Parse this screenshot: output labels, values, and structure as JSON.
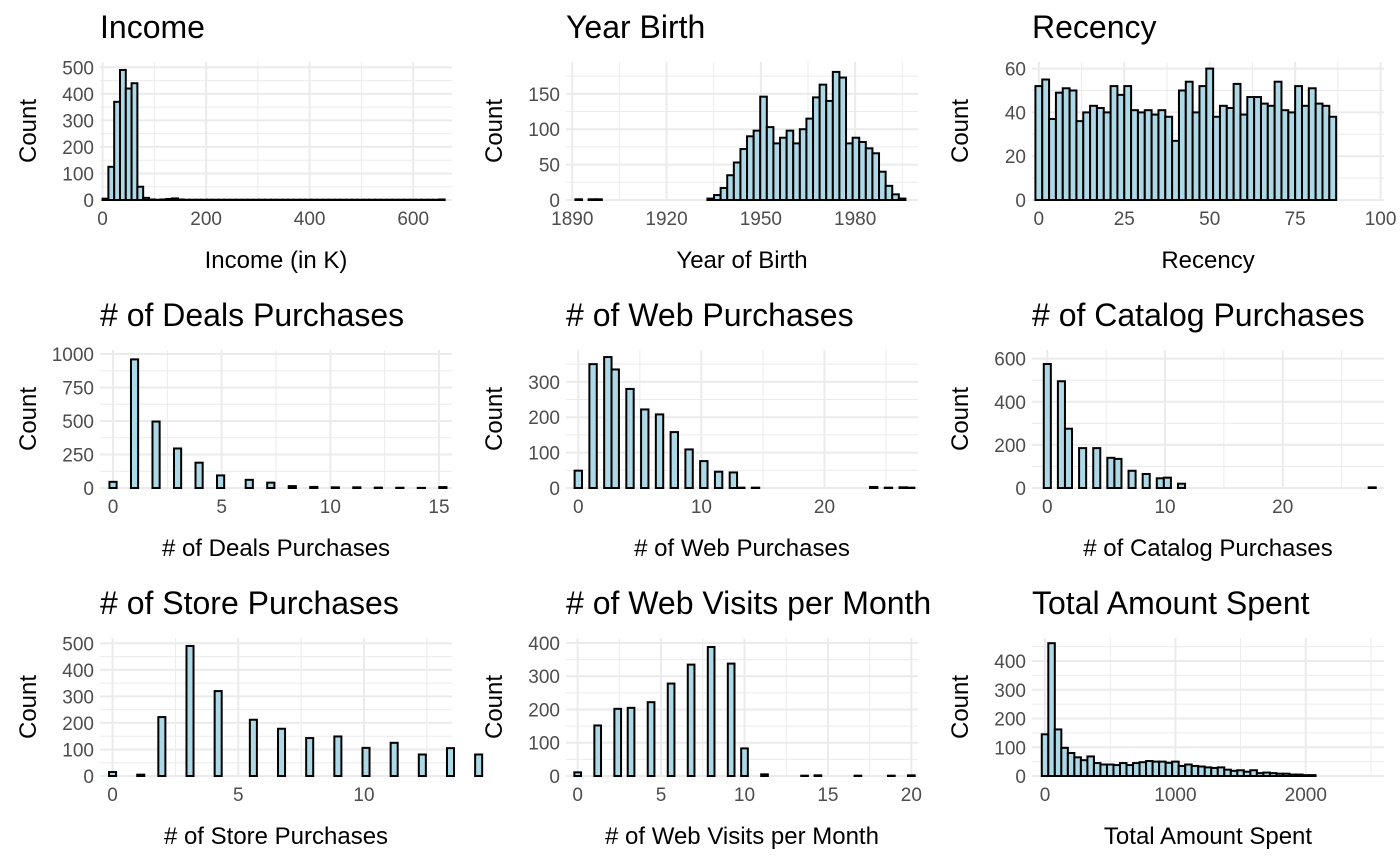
{
  "colors": {
    "bar_fill": "#add8e6",
    "bar_outline": "#000000",
    "grid": "#ebebeb",
    "tick_text": "#4d4d4d"
  },
  "chart_data": [
    {
      "type": "bar",
      "title": "Income",
      "xlabel": "Income (in K)",
      "ylabel": "Count",
      "xlim": [
        -5,
        675
      ],
      "ylim": [
        0,
        520
      ],
      "xticks": [
        0,
        200,
        400,
        600
      ],
      "yticks": [
        0,
        100,
        200,
        300,
        400,
        500
      ],
      "bin_width": 11.2,
      "x_start": 0,
      "values": [
        5,
        125,
        370,
        490,
        420,
        440,
        50,
        8,
        2,
        1,
        2,
        4,
        6,
        2,
        1,
        1,
        1,
        1,
        1,
        1,
        1,
        1,
        1,
        1,
        1,
        1,
        1,
        1,
        1,
        1,
        1,
        1,
        1,
        1,
        1,
        1,
        1,
        1,
        1,
        1,
        1,
        1,
        1,
        1,
        1,
        1,
        1,
        1,
        1,
        1,
        1,
        1,
        1,
        1,
        1,
        1,
        1,
        1,
        2
      ]
    },
    {
      "type": "bar",
      "title": "Year Birth",
      "xlabel": "Year of Birth",
      "ylabel": "Count",
      "xlim": [
        1888,
        2000
      ],
      "ylim": [
        0,
        195
      ],
      "xticks": [
        1890,
        1920,
        1950,
        1980
      ],
      "yticks": [
        0,
        50,
        100,
        150
      ],
      "bin_width": 2.1,
      "x_start": 1891,
      "values": [
        1,
        0,
        1,
        1,
        0,
        0,
        0,
        0,
        0,
        0,
        0,
        0,
        0,
        0,
        0,
        0,
        0,
        0,
        0,
        0,
        2,
        7,
        17,
        35,
        53,
        72,
        90,
        98,
        146,
        103,
        80,
        88,
        98,
        80,
        100,
        115,
        145,
        163,
        140,
        181,
        173,
        80,
        88,
        82,
        73,
        66,
        40,
        20,
        8,
        2
      ]
    },
    {
      "type": "bar",
      "title": "Recency",
      "xlabel": "Recency",
      "ylabel": "Count",
      "xlim": [
        -2,
        101
      ],
      "ylim": [
        0,
        63
      ],
      "xticks": [
        0,
        25,
        50,
        75,
        100
      ],
      "yticks": [
        0,
        20,
        40,
        60
      ],
      "bin_width": 2.0,
      "x_start": -1,
      "values": [
        52,
        55,
        37,
        49,
        51,
        50,
        36,
        40,
        43,
        42,
        40,
        52,
        48,
        52,
        41,
        40,
        41,
        39,
        41,
        38,
        27,
        50,
        54,
        40,
        52,
        60,
        38,
        43,
        42,
        53,
        39,
        47,
        47,
        44,
        43,
        54,
        41,
        40,
        52,
        43,
        51,
        44,
        43,
        38
      ]
    },
    {
      "type": "bar",
      "title": "# of Deals Purchases",
      "xlabel": "# of Deals Purchases",
      "ylabel": "Count",
      "xlim": [
        -0.6,
        15.6
      ],
      "ylim": [
        0,
        1030
      ],
      "xticks": [
        0,
        5,
        10,
        15
      ],
      "yticks": [
        0,
        250,
        500,
        750,
        1000
      ],
      "bin_width": 0.33,
      "x_start": -0.165,
      "values": [
        46,
        0,
        0,
        960,
        0,
        0,
        496,
        0,
        0,
        295,
        0,
        0,
        189,
        0,
        0,
        94,
        0,
        0,
        0,
        61,
        0,
        0,
        40,
        0,
        0,
        14,
        0,
        0,
        8,
        0,
        0,
        5,
        0,
        0,
        5,
        0,
        0,
        3,
        0,
        0,
        2,
        0,
        0,
        1,
        0,
        0,
        7
      ]
    },
    {
      "type": "bar",
      "title": "# of Web Purchases",
      "xlabel": "# of Web Purchases",
      "ylabel": "Count",
      "xlim": [
        -1,
        27.6
      ],
      "ylim": [
        0,
        390
      ],
      "xticks": [
        0,
        10,
        20
      ],
      "yticks": [
        0,
        100,
        200,
        300
      ],
      "bin_width": 0.6,
      "x_start": -0.3,
      "values": [
        49,
        0,
        350,
        0,
        370,
        335,
        0,
        280,
        0,
        222,
        0,
        208,
        0,
        158,
        0,
        109,
        0,
        76,
        0,
        46,
        0,
        44,
        1,
        0,
        1,
        0,
        0,
        0,
        0,
        0,
        0,
        0,
        0,
        0,
        0,
        0,
        0,
        0,
        0,
        0,
        3,
        0,
        1,
        0,
        2,
        1
      ]
    },
    {
      "type": "bar",
      "title": "# of Catalog Purchases",
      "xlabel": "# of Catalog Purchases",
      "ylabel": "Count",
      "xlim": [
        -1.3,
        28.6
      ],
      "ylim": [
        0,
        640
      ],
      "xticks": [
        0,
        10,
        20
      ],
      "yticks": [
        0,
        200,
        400,
        600
      ],
      "bin_width": 0.6,
      "x_start": -0.3,
      "values": [
        575,
        0,
        495,
        275,
        0,
        185,
        0,
        185,
        0,
        140,
        135,
        0,
        80,
        0,
        65,
        0,
        45,
        48,
        0,
        20,
        0,
        0,
        0,
        0,
        0,
        0,
        0,
        0,
        0,
        0,
        0,
        0,
        0,
        0,
        0,
        0,
        0,
        0,
        0,
        0,
        0,
        0,
        0,
        0,
        0,
        0,
        3
      ]
    },
    {
      "type": "bar",
      "title": "# of Store Purchases",
      "xlabel": "# of Store Purchases",
      "ylabel": "Count",
      "xlim": [
        -0.5,
        13.5
      ],
      "ylim": [
        0,
        520
      ],
      "xticks": [
        0,
        5,
        10
      ],
      "yticks": [
        0,
        100,
        200,
        300,
        400,
        500
      ],
      "bin_width": 0.28,
      "x_start": -0.14,
      "values": [
        15,
        0,
        0,
        0,
        5,
        0,
        0,
        222,
        0,
        0,
        0,
        490,
        0,
        0,
        0,
        320,
        0,
        0,
        0,
        0,
        212,
        0,
        0,
        0,
        178,
        0,
        0,
        0,
        143,
        0,
        0,
        0,
        149,
        0,
        0,
        0,
        106,
        0,
        0,
        0,
        125,
        0,
        0,
        0,
        81,
        0,
        0,
        0,
        105,
        0,
        0,
        0,
        81
      ]
    },
    {
      "type": "bar",
      "title": "# of Web Visits per Month",
      "xlabel": "# of Web Visits per Month",
      "ylabel": "Count",
      "xlim": [
        -0.7,
        20.4
      ],
      "ylim": [
        0,
        415
      ],
      "xticks": [
        0,
        5,
        10,
        15,
        20
      ],
      "yticks": [
        0,
        100,
        200,
        300,
        400
      ],
      "bin_width": 0.4,
      "x_start": -0.2,
      "values": [
        11,
        0,
        0,
        152,
        0,
        0,
        202,
        0,
        205,
        0,
        0,
        222,
        0,
        0,
        278,
        0,
        0,
        335,
        0,
        0,
        388,
        0,
        0,
        338,
        0,
        83,
        0,
        0,
        5,
        0,
        0,
        0,
        0,
        0,
        1,
        0,
        2,
        0,
        0,
        0,
        0,
        0,
        1,
        0,
        0,
        0,
        0,
        1,
        0,
        0,
        2
      ]
    },
    {
      "type": "bar",
      "title": "Total Amount Spent",
      "xlabel": "Total Amount Spent",
      "ylabel": "Count",
      "xlim": [
        -100,
        2600
      ],
      "ylim": [
        0,
        480
      ],
      "xticks": [
        0,
        1000,
        2000
      ],
      "yticks": [
        0,
        100,
        200,
        300,
        400
      ],
      "bin_width": 50,
      "x_start": -25,
      "values": [
        145,
        462,
        162,
        98,
        80,
        65,
        55,
        68,
        45,
        40,
        40,
        38,
        45,
        38,
        45,
        48,
        52,
        50,
        50,
        46,
        50,
        35,
        40,
        35,
        33,
        30,
        28,
        30,
        22,
        18,
        20,
        15,
        20,
        10,
        12,
        10,
        8,
        8,
        5,
        5,
        3,
        3
      ]
    }
  ]
}
